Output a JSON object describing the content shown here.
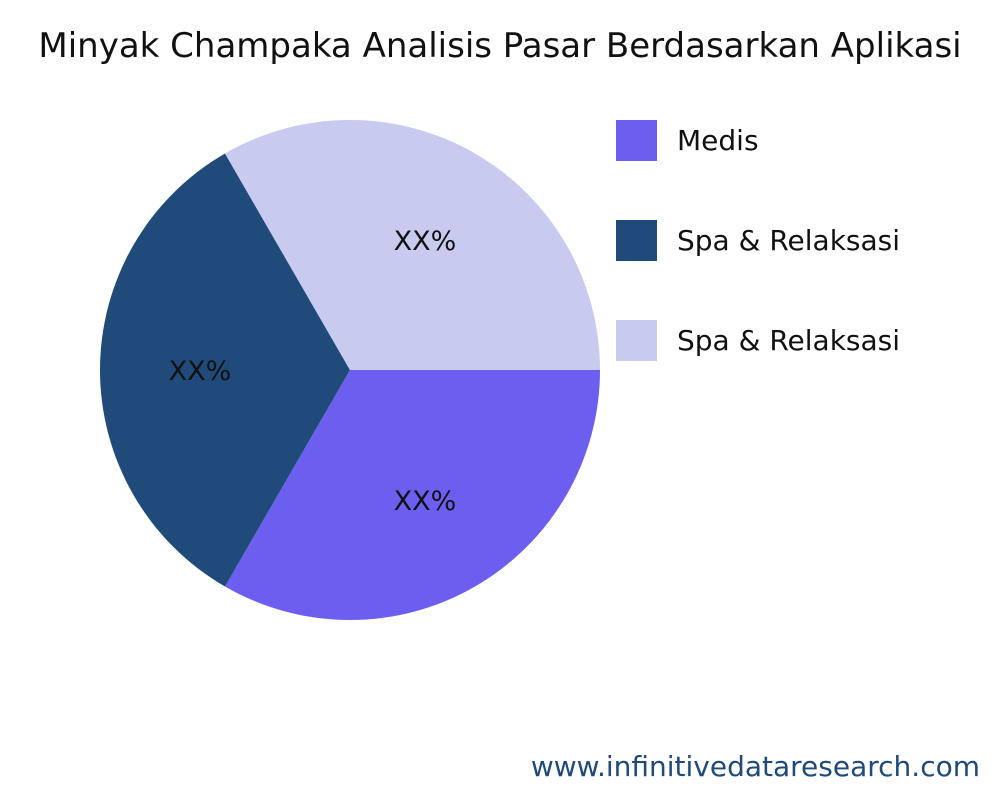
{
  "chart_data": {
    "type": "pie",
    "title": "Minyak Champaka Analisis Pasar Berdasarkan Aplikasi",
    "categories": [
      "Medis",
      "Spa & Relaksasi",
      "Spa & Relaksasi"
    ],
    "values": [
      33.33,
      33.33,
      33.33
    ],
    "data_labels": [
      "XX%",
      "XX%",
      "XX%"
    ],
    "colors": [
      "#6C5FF0",
      "#1F4A7A",
      "#C8CAF0"
    ],
    "legend_position": "right"
  },
  "footer": "www.infinitivedataresearch.com"
}
